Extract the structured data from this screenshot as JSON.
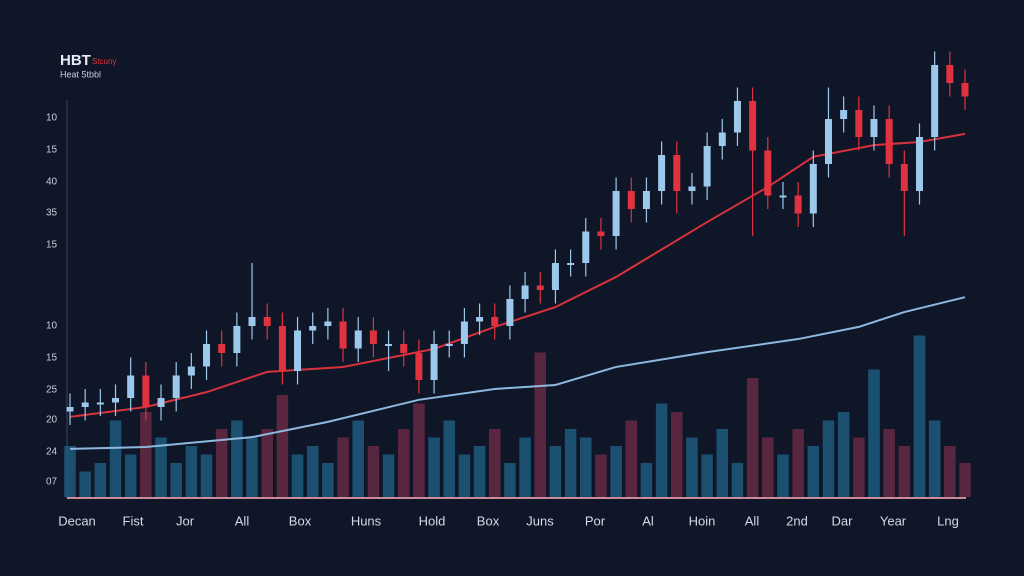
{
  "chart_data": {
    "type": "candlestick",
    "title": "HBT",
    "title_note": "Stcuny",
    "subtitle": "Heat 5tbbl",
    "y_labels": [
      "10",
      "15",
      "40",
      "35",
      "15",
      "10",
      "15",
      "25",
      "20",
      "24",
      "07"
    ],
    "x_labels": [
      "Decan",
      "Fist",
      "Jor",
      "All",
      "Box",
      "Huns",
      "Hold",
      "Box",
      "Juns",
      "Por",
      "Al",
      "Hoin",
      "All",
      "2nd",
      "Dar",
      "Year",
      "Lng"
    ],
    "ylim": [
      0,
      100
    ],
    "open": [
      19,
      20,
      21,
      21,
      22,
      27,
      20,
      22,
      27,
      29,
      34,
      32,
      38,
      40,
      38,
      28,
      37,
      38,
      39,
      33,
      37,
      34,
      34,
      32,
      26,
      34,
      34,
      39,
      40,
      38,
      44,
      47,
      46,
      52,
      52,
      59,
      58,
      68,
      64,
      68,
      76,
      68,
      69,
      78,
      81,
      88,
      77,
      67,
      67,
      63,
      74,
      84,
      86,
      80,
      84,
      74,
      68,
      80,
      96,
      92
    ],
    "high": [
      23,
      24,
      24,
      25,
      31,
      30,
      25,
      30,
      32,
      37,
      37,
      41,
      52,
      43,
      41,
      40,
      41,
      42,
      42,
      40,
      40,
      37,
      37,
      35,
      37,
      37,
      42,
      43,
      43,
      47,
      50,
      50,
      55,
      55,
      62,
      62,
      71,
      71,
      71,
      79,
      79,
      72,
      81,
      84,
      91,
      91,
      80,
      70,
      70,
      77,
      91,
      89,
      89,
      87,
      87,
      77,
      83,
      99,
      99,
      95
    ],
    "low": [
      16,
      17,
      18,
      18,
      19,
      17,
      17,
      19,
      24,
      26,
      29,
      29,
      35,
      35,
      25,
      25,
      34,
      35,
      30,
      30,
      31,
      28,
      29,
      23,
      23,
      31,
      31,
      36,
      35,
      35,
      41,
      43,
      43,
      49,
      49,
      55,
      55,
      61,
      61,
      65,
      63,
      65,
      66,
      75,
      78,
      58,
      64,
      64,
      60,
      60,
      71,
      81,
      77,
      77,
      71,
      58,
      65,
      77,
      89,
      86
    ],
    "close": [
      20,
      21,
      21,
      22,
      27,
      20,
      22,
      27,
      29,
      34,
      32,
      38,
      40,
      38,
      28,
      37,
      38,
      39,
      33,
      37,
      34,
      34,
      32,
      26,
      34,
      34,
      39,
      40,
      38,
      44,
      47,
      46,
      52,
      52,
      59,
      58,
      68,
      64,
      68,
      76,
      68,
      69,
      78,
      81,
      88,
      77,
      67,
      67,
      63,
      74,
      84,
      86,
      80,
      84,
      74,
      68,
      80,
      96,
      92,
      89
    ],
    "up_color": "#9cc8ec",
    "down_color": "#e0323f",
    "ma": [
      {
        "color": "#d8323c",
        "x": [
          0,
          5,
          9,
          13,
          18,
          24,
          28,
          32,
          36,
          42,
          46,
          49,
          53,
          56,
          59
        ],
        "values": [
          17.8,
          20,
          23.3,
          27.8,
          28.9,
          32.9,
          37.8,
          42.2,
          48.9,
          61.1,
          68.9,
          75.6,
          78.2,
          78.9,
          80.7
        ]
      },
      {
        "color": "#8fb8de",
        "x": [
          0,
          5,
          12,
          17,
          23,
          28,
          32,
          36,
          42,
          48,
          52,
          55,
          59
        ],
        "values": [
          10.7,
          11.1,
          13.3,
          16.7,
          21.6,
          24,
          24.9,
          28.9,
          32.2,
          35.1,
          37.8,
          41.1,
          44.4
        ]
      }
    ],
    "volume": [
      30,
      15,
      20,
      45,
      25,
      50,
      35,
      20,
      30,
      25,
      40,
      45,
      35,
      40,
      60,
      25,
      30,
      20,
      35,
      45,
      30,
      25,
      40,
      55,
      35,
      45,
      25,
      30,
      40,
      20,
      35,
      85,
      30,
      40,
      35,
      25,
      30,
      45,
      20,
      55,
      50,
      35,
      25,
      40,
      20,
      70,
      35,
      25,
      40,
      30,
      45,
      50,
      35,
      75,
      40,
      30,
      95,
      45,
      30,
      20
    ],
    "volume_lim": [
      0,
      100
    ],
    "volume_up_color": "#1f5f82",
    "volume_down_color": "#6a2a44"
  }
}
